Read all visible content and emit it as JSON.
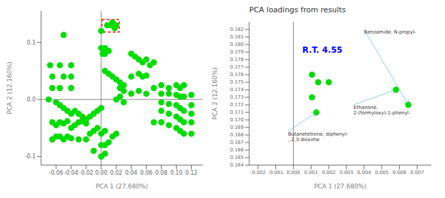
{
  "chart_data": [
    {
      "type": "scatter",
      "xlabel": "PCA 1 (27.680%)",
      "ylabel": "PCA 2 (12.160%)",
      "color": "#00dd00",
      "xlim": [
        -0.08,
        0.135
      ],
      "ylim": [
        -0.115,
        0.155
      ],
      "xticks": [
        -0.06,
        -0.04,
        -0.02,
        {
          "value": 0.0,
          "label": "0.00"
        },
        0.02,
        0.04,
        0.06,
        0.08,
        {
          "value": 0.1,
          "label": "0.10"
        },
        0.12
      ],
      "yticks": [
        -0.1,
        {
          "value": 0.0,
          "label": "0.0"
        },
        0.1
      ],
      "reference_lines": {
        "x": 0,
        "y": 0
      },
      "highlight_box": {
        "x": [
          0.001,
          0.024
        ],
        "y": [
          0.118,
          0.14
        ],
        "color": "red"
      },
      "x": [
        -0.068,
        -0.055,
        -0.05,
        -0.04,
        -0.065,
        -0.05,
        -0.04,
        -0.065,
        -0.055,
        -0.04,
        -0.07,
        -0.06,
        -0.055,
        -0.05,
        -0.045,
        -0.04,
        -0.035,
        -0.03,
        -0.025,
        -0.02,
        -0.015,
        -0.01,
        -0.005,
        0.0,
        -0.065,
        -0.06,
        -0.055,
        -0.05,
        -0.045,
        -0.04,
        -0.035,
        -0.03,
        -0.025,
        -0.02,
        -0.015,
        -0.01,
        -0.005,
        0.0,
        0.005,
        0.0,
        -0.065,
        -0.06,
        -0.055,
        -0.05,
        -0.045,
        -0.04,
        -0.03,
        -0.02,
        0.005,
        0.01,
        0.015,
        0.02,
        -0.01,
        0.0,
        0.005,
        0.0,
        0.0,
        0.005,
        0.002,
        0.005,
        0.01,
        0.008,
        0.012,
        0.015,
        0.02,
        0.018,
        0.005,
        0.01,
        0.015,
        0.02,
        0.025,
        0.025,
        0.03,
        0.03,
        0.025,
        0.02,
        0.03,
        0.04,
        0.045,
        0.05,
        0.055,
        0.06,
        0.065,
        0.07,
        0.04,
        0.05,
        0.055,
        0.06,
        0.04,
        0.05,
        0.06,
        0.07,
        0.08,
        0.09,
        0.1,
        0.105,
        0.11,
        0.08,
        0.09,
        0.1,
        0.105,
        0.11,
        0.12,
        0.08,
        0.09,
        0.1,
        0.105,
        0.11,
        0.12,
        0.08,
        0.09,
        0.1,
        0.105,
        0.11,
        0.12,
        0.07,
        0.08,
        0.09,
        0.1,
        0.105,
        0.11,
        0.12,
        0.12
      ],
      "values": [
        0.06,
        0.06,
        0.113,
        0.06,
        0.04,
        0.04,
        0.04,
        0.02,
        0.02,
        0.02,
        0.0,
        -0.005,
        -0.01,
        -0.015,
        -0.02,
        -0.025,
        -0.02,
        -0.025,
        -0.03,
        -0.035,
        -0.03,
        -0.025,
        -0.02,
        -0.015,
        -0.04,
        -0.045,
        -0.04,
        -0.042,
        -0.038,
        -0.05,
        -0.045,
        -0.04,
        -0.038,
        -0.042,
        -0.06,
        -0.055,
        -0.05,
        -0.06,
        -0.055,
        -0.08,
        -0.07,
        -0.065,
        -0.065,
        -0.07,
        -0.065,
        -0.068,
        -0.07,
        -0.07,
        -0.08,
        -0.075,
        -0.065,
        -0.06,
        -0.09,
        -0.1,
        -0.095,
        0.12,
        0.09,
        0.09,
        0.08,
        0.08,
        0.085,
        0.13,
        0.13,
        0.135,
        0.13,
        0.125,
        0.05,
        0.045,
        0.04,
        0.035,
        0.03,
        0.02,
        0.025,
        0.015,
        0.005,
        0.0,
        -0.005,
        0.08,
        0.075,
        0.07,
        0.065,
        0.07,
        0.06,
        0.065,
        0.04,
        0.045,
        0.04,
        0.042,
        0.01,
        0.015,
        0.01,
        0.02,
        0.025,
        0.02,
        0.025,
        0.02,
        0.025,
        0.01,
        0.01,
        0.008,
        0.005,
        0.005,
        0.008,
        -0.005,
        -0.008,
        -0.01,
        -0.015,
        -0.02,
        -0.01,
        -0.02,
        -0.025,
        -0.03,
        -0.035,
        -0.04,
        -0.025,
        -0.04,
        -0.04,
        -0.045,
        -0.05,
        -0.055,
        -0.06,
        -0.04,
        -0.06
      ]
    },
    {
      "type": "scatter",
      "title": "PCA loadings from results",
      "xlabel": "PCA 1 (27.680%)",
      "ylabel": "PCA 2 (12.160%)",
      "color": "#00dd00",
      "xlim": [
        -0.0025,
        0.0078
      ],
      "ylim": [
        0.164,
        0.183
      ],
      "xticks": [
        -0.002,
        -0.001,
        {
          "value": 0.0,
          "label": "0.000"
        },
        0.001,
        0.002,
        0.003,
        0.004,
        0.005,
        0.006,
        0.007
      ],
      "yticks": [
        0.164,
        0.165,
        0.166,
        0.167,
        0.168,
        0.169,
        {
          "value": 0.17,
          "label": "0.170"
        },
        0.171,
        0.172,
        0.173,
        0.174,
        0.175,
        0.176,
        0.177,
        0.178,
        0.179,
        {
          "value": 0.18,
          "label": "0.180"
        },
        0.181,
        0.182
      ],
      "reference_lines": {
        "x": 0
      },
      "x": [
        0.00105,
        0.0014,
        0.00105,
        0.0013,
        0.002,
        0.0058,
        0.0065
      ],
      "values": [
        0.176,
        0.175,
        0.173,
        0.171,
        0.175,
        0.174,
        0.172
      ],
      "annotations": [
        {
          "text": "Benzamide, N-propyl-",
          "point": [
            0.0065,
            0.172
          ],
          "text_at": [
            0.004,
            0.182
          ],
          "arrow_color": "#87CEEB"
        },
        {
          "text": "Ethanone,\n2-(formyloxy)-1-phenyl-",
          "point": [
            0.0058,
            0.174
          ],
          "text_at": [
            0.0034,
            0.172
          ],
          "arrow_color": "#87CEEB"
        },
        {
          "text": "Butanetetrone, diphenyl-\n, 2,3-dioxime",
          "point": [
            0.0013,
            0.171
          ],
          "text_at": [
            -0.0003,
            0.1685
          ],
          "arrow_color": "#87CEEB"
        },
        {
          "text": "R.T. 4.55",
          "text_at": [
            0.0005,
            0.1793
          ],
          "color": "blue"
        }
      ]
    }
  ]
}
